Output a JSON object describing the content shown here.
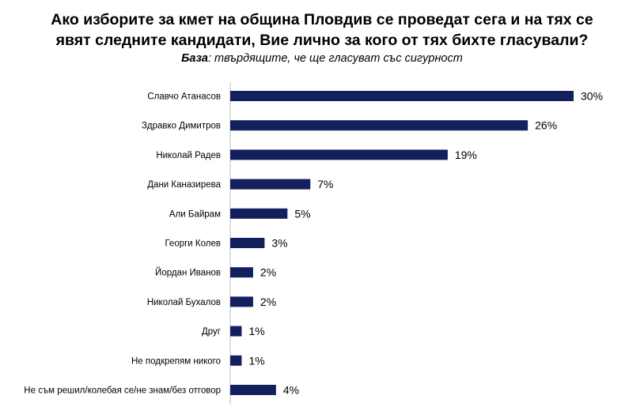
{
  "title_line1": "Ако изборите за кмет на община Пловдив се проведат сега и на тях се",
  "title_line2": "явят следните кандидати, Вие лично за кого от тях бихте гласували?",
  "subtitle_prefix": "База",
  "subtitle_text": ": твърдящите, че ще гласуват със сигурност",
  "colors": {
    "bar": "#12215e",
    "axis": "#bfbfbf",
    "text": "#000000"
  },
  "chart_data": {
    "type": "bar",
    "orientation": "horizontal",
    "categories": [
      "Славчо Атанасов",
      "Здравко Димитров",
      "Николай Радев",
      "Дани Каназирева",
      "Али Байрам",
      "Георги Колев",
      "Йордан Иванов",
      "Николай Бухалов",
      "Друг",
      "Не подкрепям никого",
      "Не съм решил/колебая се/не знам/без отговор"
    ],
    "values": [
      30,
      26,
      19,
      7,
      5,
      3,
      2,
      2,
      1,
      1,
      4
    ],
    "labels": [
      "30%",
      "26%",
      "19%",
      "7%",
      "5%",
      "3%",
      "2%",
      "2%",
      "1%",
      "1%",
      "4%"
    ],
    "xlim": [
      0,
      30
    ],
    "grid": false,
    "legend": "none"
  }
}
